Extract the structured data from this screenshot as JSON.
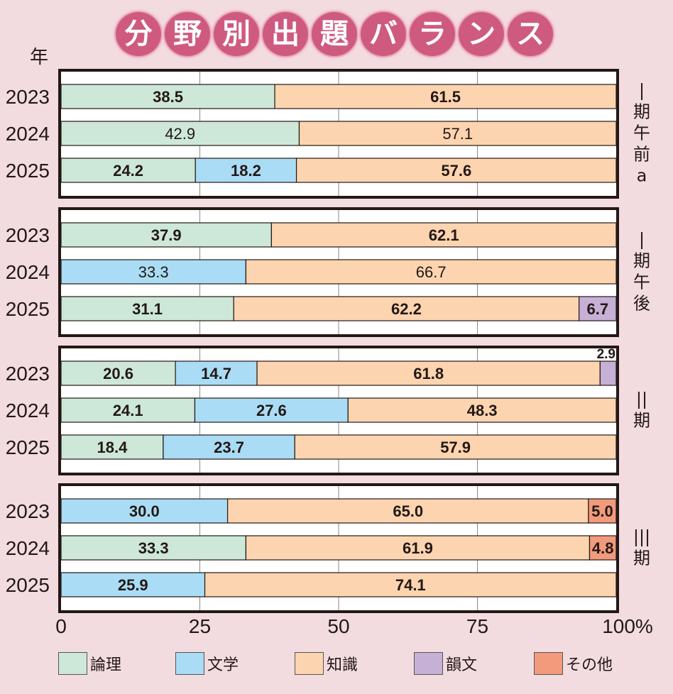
{
  "title_chars": [
    "分",
    "野",
    "別",
    "出",
    "題",
    "バ",
    "ラ",
    "ン",
    "ス"
  ],
  "year_axis_label": "年",
  "chart_data": {
    "type": "bar",
    "orientation": "horizontal-stacked-100",
    "title": "分野別出題バランス",
    "xlabel": "",
    "ylabel": "年",
    "xlim": [
      0,
      100
    ],
    "x_ticks": [
      "0",
      "25",
      "50",
      "75",
      "100%"
    ],
    "grid": true,
    "legend_position": "bottom",
    "categories_legend": [
      {
        "key": "ronri",
        "label": "論理",
        "color": "#cde8d8"
      },
      {
        "key": "bungaku",
        "label": "文学",
        "color": "#aadcf5"
      },
      {
        "key": "chishiki",
        "label": "知識",
        "color": "#fdd4b0"
      },
      {
        "key": "inbun",
        "label": "韻文",
        "color": "#c6b0d6"
      },
      {
        "key": "sonota",
        "label": "その他",
        "color": "#f29a7c"
      }
    ],
    "panels": [
      {
        "label": "Ⅰ期午前a",
        "label_chars": [
          "|",
          "期",
          "午",
          "前",
          "a"
        ],
        "rows": [
          {
            "year": "2023",
            "bold": true,
            "segments": [
              {
                "key": "ronri",
                "value": 38.5
              },
              {
                "key": "chishiki",
                "value": 61.5
              }
            ]
          },
          {
            "year": "2024",
            "bold": false,
            "segments": [
              {
                "key": "ronri",
                "value": 42.9
              },
              {
                "key": "chishiki",
                "value": 57.1
              }
            ]
          },
          {
            "year": "2025",
            "bold": true,
            "segments": [
              {
                "key": "ronri",
                "value": 24.2
              },
              {
                "key": "bungaku",
                "value": 18.2
              },
              {
                "key": "chishiki",
                "value": 57.6
              }
            ]
          }
        ]
      },
      {
        "label": "Ⅰ期午後",
        "label_chars": [
          "|",
          "期",
          "午",
          "後"
        ],
        "rows": [
          {
            "year": "2023",
            "bold": true,
            "segments": [
              {
                "key": "ronri",
                "value": 37.9
              },
              {
                "key": "chishiki",
                "value": 62.1
              }
            ]
          },
          {
            "year": "2024",
            "bold": false,
            "segments": [
              {
                "key": "bungaku",
                "value": 33.3
              },
              {
                "key": "chishiki",
                "value": 66.7
              }
            ]
          },
          {
            "year": "2025",
            "bold": true,
            "segments": [
              {
                "key": "ronri",
                "value": 31.1
              },
              {
                "key": "chishiki",
                "value": 62.2
              },
              {
                "key": "inbun",
                "value": 6.7
              }
            ]
          }
        ]
      },
      {
        "label": "Ⅱ期",
        "label_chars": [
          "||",
          "期"
        ],
        "rows": [
          {
            "year": "2023",
            "bold": true,
            "segments": [
              {
                "key": "ronri",
                "value": 20.6
              },
              {
                "key": "bungaku",
                "value": 14.7
              },
              {
                "key": "chishiki",
                "value": 61.8
              },
              {
                "key": "inbun",
                "value": 2.9,
                "label_above": true
              }
            ]
          },
          {
            "year": "2024",
            "bold": true,
            "segments": [
              {
                "key": "ronri",
                "value": 24.1
              },
              {
                "key": "bungaku",
                "value": 27.6
              },
              {
                "key": "chishiki",
                "value": 48.3
              }
            ]
          },
          {
            "year": "2025",
            "bold": true,
            "segments": [
              {
                "key": "ronri",
                "value": 18.4
              },
              {
                "key": "bungaku",
                "value": 23.7
              },
              {
                "key": "chishiki",
                "value": 57.9
              }
            ]
          }
        ]
      },
      {
        "label": "Ⅲ期",
        "label_chars": [
          "|||",
          "期"
        ],
        "rows": [
          {
            "year": "2023",
            "bold": true,
            "segments": [
              {
                "key": "bungaku",
                "value": 30.0
              },
              {
                "key": "chishiki",
                "value": 65.0
              },
              {
                "key": "sonota",
                "value": 5.0
              }
            ]
          },
          {
            "year": "2024",
            "bold": true,
            "segments": [
              {
                "key": "ronri",
                "value": 33.3
              },
              {
                "key": "chishiki",
                "value": 61.9
              },
              {
                "key": "sonota",
                "value": 4.8
              }
            ]
          },
          {
            "year": "2025",
            "bold": true,
            "segments": [
              {
                "key": "bungaku",
                "value": 25.9
              },
              {
                "key": "chishiki",
                "value": 74.1
              }
            ]
          }
        ]
      }
    ]
  },
  "colors": {
    "background": "#f2dce0",
    "title_circle": "#cf5a80",
    "frame": "#231815"
  }
}
